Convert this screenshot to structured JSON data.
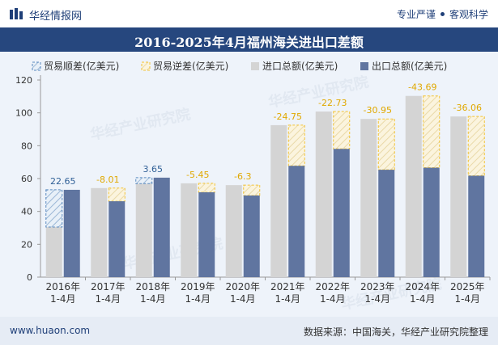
{
  "header": {
    "brand": "华经情报网",
    "tagline_left": "专业严谨",
    "tagline_right": "客观科学"
  },
  "chart_title": "2016-2025年4月福州海关进出口差额",
  "footer": {
    "site": "www.huaon.com",
    "source": "数据来源：中国海关，华经产业研究院整理"
  },
  "colors": {
    "import": "#d4d4d4",
    "export": "#6075a0",
    "surplus_border": "#5a8ac0",
    "deficit_border": "#f3c335",
    "title_bg": "#26477e"
  },
  "chart_data": {
    "type": "bar",
    "categories": [
      "2016年\n1-4月",
      "2017年\n1-4月",
      "2018年\n1-4月",
      "2019年\n1-4月",
      "2020年\n1-4月",
      "2021年\n1-4月",
      "2022年\n1-4月",
      "2023年\n1-4月",
      "2024年\n1-4月",
      "2025年\n1-4月"
    ],
    "legend": [
      "贸易顺差(亿美元)",
      "贸易逆差(亿美元)",
      "进口总额(亿美元)",
      "出口总额(亿美元)"
    ],
    "legend_position": "top-left",
    "series": [
      {
        "name": "进口总额(亿美元)",
        "values": [
          30.5,
          54.2,
          56.9,
          57.1,
          56.0,
          92.5,
          100.8,
          96.3,
          110.3,
          97.8
        ]
      },
      {
        "name": "出口总额(亿美元)",
        "values": [
          53.15,
          46.19,
          60.55,
          51.65,
          49.7,
          67.75,
          78.07,
          65.35,
          66.61,
          61.74
        ]
      }
    ],
    "balance": [
      22.65,
      -8.01,
      3.65,
      -5.45,
      -6.3,
      -24.75,
      -22.73,
      -30.95,
      -43.69,
      -36.06
    ],
    "balance_labels": [
      "22.65",
      "-8.01",
      "3.65",
      "-5.45",
      "-6.3",
      "-24.75",
      "-22.73",
      "-30.95",
      "-43.69",
      "-36.06"
    ],
    "ylim": [
      0,
      120
    ],
    "yticks": [
      0,
      20,
      40,
      60,
      80,
      100,
      120
    ],
    "grid": false
  }
}
